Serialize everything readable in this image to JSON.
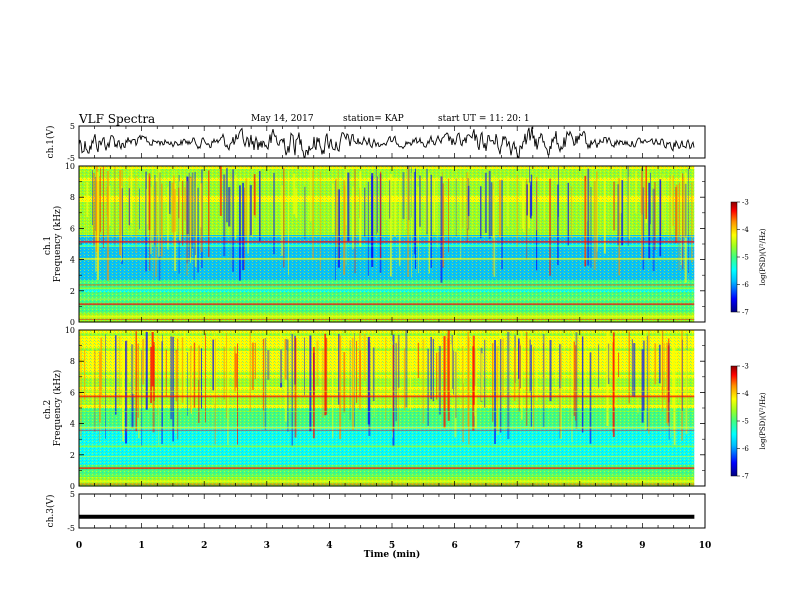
{
  "header": {
    "title": "VLF Spectra",
    "date": "May 14, 2017",
    "station": "station= KAP",
    "start_ut": "start UT =  11: 20: 1"
  },
  "chart_data": [
    {
      "type": "line",
      "panel": "ch1-waveform",
      "ylabel": "ch.1(V)",
      "ylim": [
        -5,
        5
      ],
      "yticks": [
        5,
        -5
      ],
      "xlim": [
        0,
        10
      ],
      "data_end_min": 9.83,
      "series": [
        {
          "name": "",
          "color": "#000000"
        }
      ]
    },
    {
      "type": "heatmap",
      "panel": "ch1-spectrogram",
      "ylabel": "ch.1\nFrequency (kHz)",
      "ylim": [
        0,
        10
      ],
      "yticks": [
        0,
        2,
        4,
        6,
        8,
        10
      ],
      "xlim": [
        0,
        10
      ],
      "data_end_min": 9.83,
      "colorbar": {
        "label": "log(PSD)(V²/Hz)",
        "range": [
          -7,
          -3
        ],
        "ticks": [
          -3,
          -4,
          -5,
          -6,
          -7
        ]
      }
    },
    {
      "type": "heatmap",
      "panel": "ch2-spectrogram",
      "ylabel": "ch.2\nFrequency (kHz)",
      "ylim": [
        0,
        10
      ],
      "yticks": [
        0,
        2,
        4,
        6,
        8,
        10
      ],
      "xlim": [
        0,
        10
      ],
      "data_end_min": 9.83,
      "colorbar": {
        "label": "log(PSD)(V²/Hz)",
        "range": [
          -7,
          -3
        ],
        "ticks": [
          -3,
          -4,
          -5,
          -6,
          -7
        ]
      }
    },
    {
      "type": "line",
      "panel": "ch3-waveform",
      "ylabel": "ch.3(V)",
      "ylim": [
        -5,
        5
      ],
      "yticks": [
        5,
        -5
      ],
      "xlim": [
        0,
        10
      ],
      "xlabel": "Time (min)",
      "xticks": [
        0,
        1,
        2,
        3,
        4,
        5,
        6,
        7,
        8,
        9,
        10
      ],
      "data_end_min": 9.83,
      "series": [
        {
          "name": "",
          "value": -1.7,
          "color": "#000000"
        }
      ]
    }
  ],
  "colormap": [
    "#00007f",
    "#0000ff",
    "#00bfff",
    "#00ffff",
    "#40ff80",
    "#a0ff20",
    "#ffff00",
    "#ff9000",
    "#ff0000",
    "#8b0000"
  ]
}
